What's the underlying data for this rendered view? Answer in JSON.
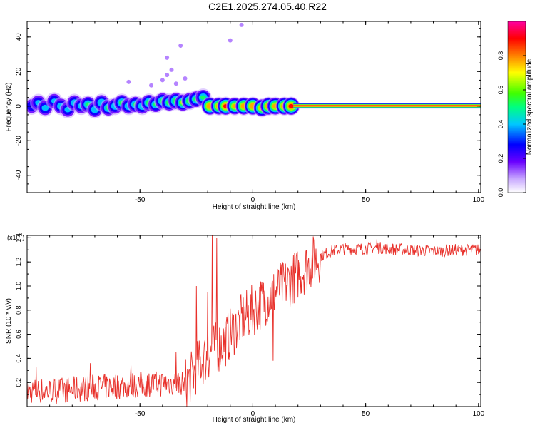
{
  "title": "C2E1.2025.274.05.40.R22",
  "chart_data": [
    {
      "type": "heatmap",
      "title": "C2E1.2025.274.05.40.R22",
      "xlabel": "Height of straight line (km)",
      "ylabel": "Frequency (Hz)",
      "xlim": [
        -100,
        101
      ],
      "ylim": [
        -50,
        49
      ],
      "xticks": [
        -50,
        0,
        50,
        100
      ],
      "yticks": [
        -40,
        -20,
        0,
        20,
        40
      ],
      "colorbar": {
        "label": "Normalized spectral amplitude",
        "range": [
          0,
          1
        ],
        "ticks": [
          "0.0",
          "0.2",
          "0.4",
          "0.6",
          "0.8"
        ],
        "colors": [
          "#ffffff",
          "#c8a8ff",
          "#6a00ff",
          "#0000ff",
          "#00c8ff",
          "#00ff80",
          "#40ff00",
          "#ffff00",
          "#ff8000",
          "#ff0000",
          "#ff00a0"
        ]
      },
      "blobs": [
        {
          "x": -98,
          "y": 0,
          "amp": 0.35
        },
        {
          "x": -95,
          "y": 2,
          "amp": 0.4
        },
        {
          "x": -92,
          "y": -1,
          "amp": 0.42
        },
        {
          "x": -88,
          "y": 3,
          "amp": 0.38
        },
        {
          "x": -85,
          "y": 0,
          "amp": 0.45
        },
        {
          "x": -82,
          "y": -2,
          "amp": 0.4
        },
        {
          "x": -79,
          "y": 2,
          "amp": 0.44
        },
        {
          "x": -76,
          "y": 0,
          "amp": 0.42
        },
        {
          "x": -73,
          "y": 1,
          "amp": 0.5
        },
        {
          "x": -70,
          "y": -2,
          "amp": 0.45
        },
        {
          "x": -67,
          "y": 2,
          "amp": 0.48
        },
        {
          "x": -64,
          "y": -1,
          "amp": 0.5
        },
        {
          "x": -61,
          "y": 0,
          "amp": 0.46
        },
        {
          "x": -58,
          "y": 2,
          "amp": 0.52
        },
        {
          "x": -55,
          "y": 0,
          "amp": 0.48
        },
        {
          "x": -52,
          "y": 1,
          "amp": 0.5
        },
        {
          "x": -49,
          "y": 0,
          "amp": 0.47
        },
        {
          "x": -46,
          "y": 2,
          "amp": 0.55
        },
        {
          "x": -43,
          "y": 1,
          "amp": 0.5
        },
        {
          "x": -40,
          "y": 3,
          "amp": 0.52
        },
        {
          "x": -37,
          "y": 2,
          "amp": 0.56
        },
        {
          "x": -34,
          "y": 3,
          "amp": 0.6
        },
        {
          "x": -31,
          "y": 2,
          "amp": 0.62
        },
        {
          "x": -28,
          "y": 3,
          "amp": 0.58
        },
        {
          "x": -25,
          "y": 4,
          "amp": 0.55
        },
        {
          "x": -22,
          "y": 5,
          "amp": 0.5
        },
        {
          "x": -19,
          "y": 0,
          "amp": 0.85
        },
        {
          "x": -15,
          "y": 0,
          "amp": 0.8
        },
        {
          "x": -12,
          "y": 0,
          "amp": 0.88
        },
        {
          "x": -8,
          "y": 0,
          "amp": 0.75
        },
        {
          "x": -4,
          "y": 0,
          "amp": 0.82
        },
        {
          "x": 0,
          "y": 0,
          "amp": 0.86
        },
        {
          "x": 4,
          "y": -1,
          "amp": 0.78
        },
        {
          "x": 7,
          "y": 0,
          "amp": 0.85
        },
        {
          "x": 10,
          "y": 0,
          "amp": 0.8
        },
        {
          "x": 14,
          "y": 0,
          "amp": 0.86
        },
        {
          "x": 17,
          "y": 0,
          "amp": 0.9
        }
      ],
      "scatter": [
        {
          "x": -38,
          "y": 18
        },
        {
          "x": -36,
          "y": 21
        },
        {
          "x": -40,
          "y": 15
        },
        {
          "x": -34,
          "y": 13
        },
        {
          "x": -30,
          "y": 16
        },
        {
          "x": -55,
          "y": 14
        },
        {
          "x": -45,
          "y": 12
        },
        {
          "x": -38,
          "y": 28
        },
        {
          "x": -32,
          "y": 35
        },
        {
          "x": -10,
          "y": 38
        },
        {
          "x": -5,
          "y": 47
        }
      ],
      "line": {
        "x_start": 18,
        "x_end": 101,
        "y": 0,
        "amp": 1.0
      }
    },
    {
      "type": "line",
      "title": "",
      "xlabel": "Height of straight line (km)",
      "ylabel": "SNR (10 * v/v)",
      "y_multiplier": "(x10",
      "y_multiplier_exp": "4",
      "xlim": [
        -100,
        101
      ],
      "ylim": [
        0,
        1.42
      ],
      "xticks": [
        -50,
        0,
        50,
        100
      ],
      "yticks": [
        "0.2",
        "0.4",
        "0.6",
        "0.8",
        "1.0",
        "1.2",
        "1.4"
      ],
      "series": [
        {
          "color": "#e8302a",
          "envelope": {
            "x": [
              -100,
              -90,
              -80,
              -70,
              -60,
              -50,
              -40,
              -30,
              -27,
              -24,
              -20,
              -17,
              -15,
              -12,
              -10,
              -5,
              0,
              5,
              10,
              15,
              20,
              25,
              30,
              35,
              40,
              45,
              50,
              55,
              60,
              70,
              80,
              90,
              101
            ],
            "y": [
              0.12,
              0.12,
              0.13,
              0.15,
              0.16,
              0.17,
              0.18,
              0.19,
              0.25,
              0.35,
              0.42,
              0.48,
              0.5,
              0.55,
              0.6,
              0.72,
              0.8,
              0.88,
              0.95,
              1.02,
              1.1,
              1.18,
              1.25,
              1.29,
              1.31,
              1.31,
              1.31,
              1.32,
              1.31,
              1.3,
              1.29,
              1.3,
              1.3
            ]
          },
          "spikes": [
            {
              "x": -96,
              "y": 0.33
            },
            {
              "x": -72,
              "y": 0.36
            },
            {
              "x": -54,
              "y": 0.34
            },
            {
              "x": -34,
              "y": 0.45
            },
            {
              "x": -25,
              "y": 1.0
            },
            {
              "x": -20,
              "y": 0.95
            },
            {
              "x": -18,
              "y": 1.42
            },
            {
              "x": -16,
              "y": 1.4
            },
            {
              "x": 9,
              "y": 0.38
            },
            {
              "x": 55,
              "y": 1.39
            }
          ]
        }
      ]
    }
  ]
}
